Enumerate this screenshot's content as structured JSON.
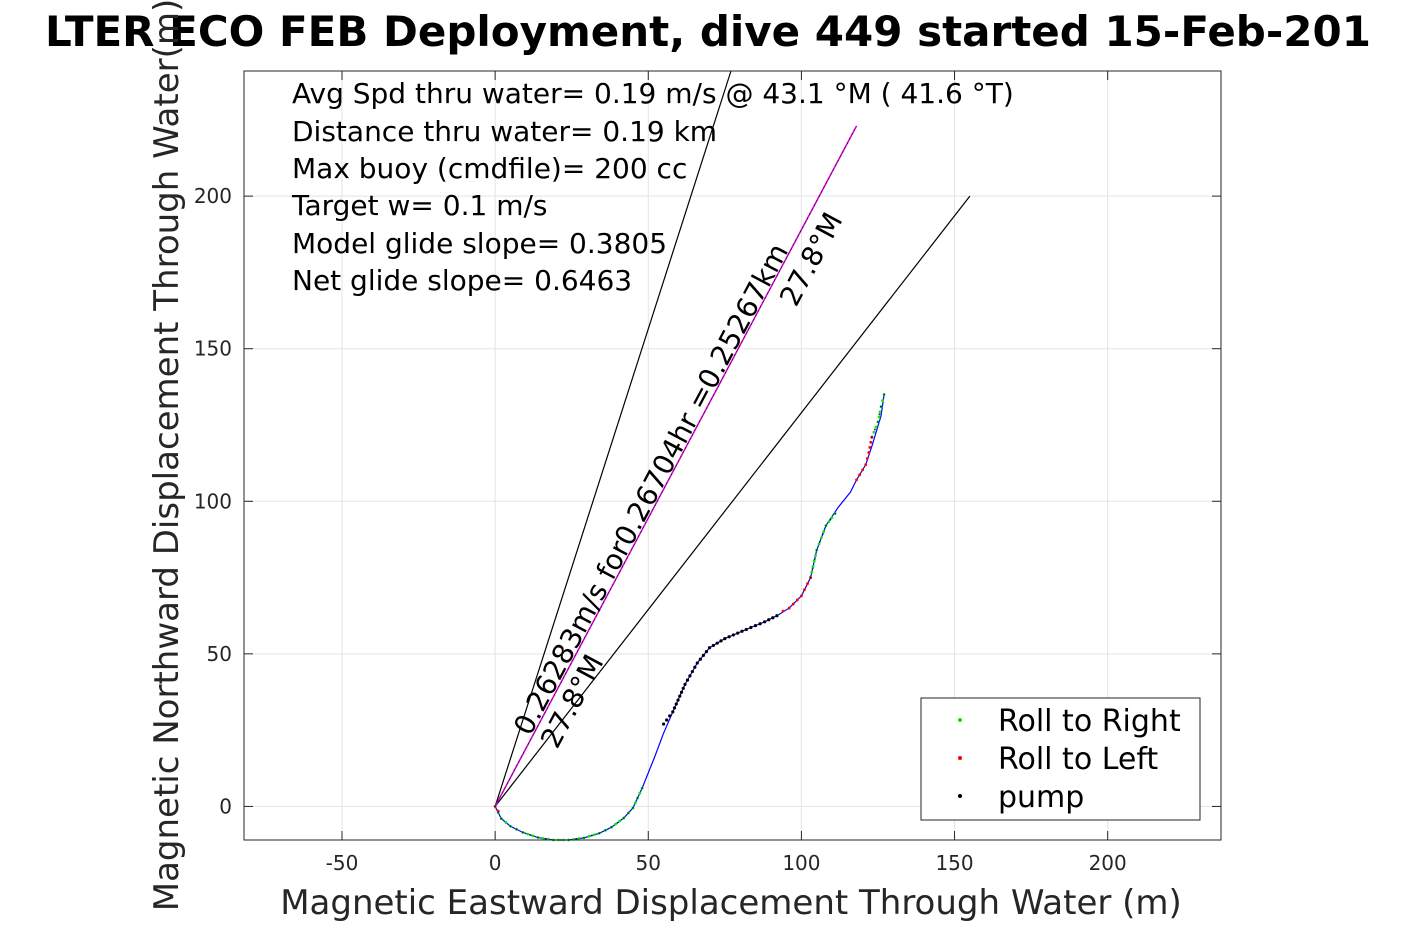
{
  "chart_data": {
    "type": "scatter",
    "title": "LTER ECO FEB Deployment, dive 449 started 15-Feb-201",
    "xlabel": "Magnetic Eastward Displacement Through Water (m)",
    "ylabel": "Magnetic Northward Displacement Through Water(m)",
    "xlim": [
      -82,
      237
    ],
    "ylim": [
      -11,
      241
    ],
    "xticks": [
      -50,
      0,
      50,
      100,
      150,
      200
    ],
    "yticks": [
      0,
      50,
      100,
      150,
      200
    ],
    "grid": true,
    "annotations": [
      "Avg Spd thru water=  0.19 m/s @  43.1 °M ( 41.6 °T)",
      "Distance thru water=  0.19 km",
      "Max buoy (cmdfile)= 200 cc",
      "Target w= 0.1 m/s",
      "Model glide slope= 0.3805",
      "Net glide slope= 0.6463"
    ],
    "bearing_label": "0.26283m/s for0.26704hr =0.25267km",
    "angle_label_upper": "27.8°M",
    "angle_label_lower": "27.8°M",
    "legend_position": "bottom-right",
    "colors": {
      "track": "#0000ff",
      "roll_right": "#00ee00",
      "roll_left": "#ff0000",
      "pump": "#000000",
      "bearing": "#cc00cc"
    },
    "bearing_line": [
      [
        0,
        0
      ],
      [
        118,
        223
      ]
    ],
    "cone_lines": [
      [
        [
          0,
          0
        ],
        [
          77,
          241
        ]
      ],
      [
        [
          0,
          0
        ],
        [
          155,
          200
        ]
      ]
    ],
    "track": [
      [
        0,
        0
      ],
      [
        2,
        -4
      ],
      [
        5,
        -6.5
      ],
      [
        9,
        -8.5
      ],
      [
        14,
        -10.2
      ],
      [
        19,
        -11
      ],
      [
        24,
        -11
      ],
      [
        29,
        -10.3
      ],
      [
        34,
        -8.8
      ],
      [
        38,
        -6.8
      ],
      [
        42,
        -3.8
      ],
      [
        45,
        -0.5
      ],
      [
        48,
        6
      ],
      [
        52,
        16
      ],
      [
        55,
        24
      ],
      [
        58,
        31
      ],
      [
        62,
        40
      ],
      [
        66,
        47
      ],
      [
        70,
        52
      ],
      [
        75,
        55
      ],
      [
        82,
        58
      ],
      [
        88,
        60.5
      ],
      [
        92,
        62.5
      ],
      [
        96,
        65
      ],
      [
        100,
        69
      ],
      [
        103,
        75
      ],
      [
        105,
        84
      ],
      [
        108,
        92
      ],
      [
        112,
        98
      ],
      [
        116,
        103
      ],
      [
        118,
        107
      ],
      [
        121,
        112
      ],
      [
        123,
        118
      ],
      [
        126,
        128
      ],
      [
        127,
        135
      ]
    ],
    "series": [
      {
        "name": "Roll to Right",
        "segments": [
          [
            [
              0,
              0
            ],
            [
              2,
              -4
            ],
            [
              5,
              -6.5
            ],
            [
              9,
              -8.5
            ],
            [
              14,
              -10.2
            ],
            [
              19,
              -11
            ],
            [
              24,
              -11
            ],
            [
              29,
              -10.3
            ],
            [
              34,
              -8.8
            ],
            [
              38,
              -6.8
            ],
            [
              42,
              -3.8
            ],
            [
              45,
              -0.5
            ],
            [
              48,
              6
            ]
          ],
          [
            [
              103,
              75
            ],
            [
              105,
              84
            ],
            [
              108,
              92
            ],
            [
              111,
              96
            ]
          ],
          [
            [
              123,
              121
            ],
            [
              125,
              126
            ],
            [
              126,
              131
            ],
            [
              127,
              135
            ]
          ]
        ]
      },
      {
        "name": "Roll to Left",
        "segments": [
          [
            [
              0,
              0
            ],
            [
              1,
              -1.5
            ]
          ],
          [
            [
              94,
              64
            ],
            [
              96,
              65
            ],
            [
              100,
              69
            ],
            [
              103,
              75
            ]
          ],
          [
            [
              118,
              107
            ],
            [
              121,
              112
            ],
            [
              122,
              116
            ],
            [
              123,
              121
            ]
          ]
        ]
      },
      {
        "name": "pump",
        "segments": [
          [
            [
              55,
              27
            ],
            [
              58,
              31
            ],
            [
              62,
              40
            ],
            [
              66,
              47
            ],
            [
              70,
              52
            ],
            [
              75,
              55
            ],
            [
              82,
              58
            ],
            [
              88,
              60.5
            ],
            [
              92,
              62.5
            ]
          ],
          [
            [
              0,
              0
            ],
            [
              48,
              6
            ]
          ]
        ]
      }
    ]
  }
}
